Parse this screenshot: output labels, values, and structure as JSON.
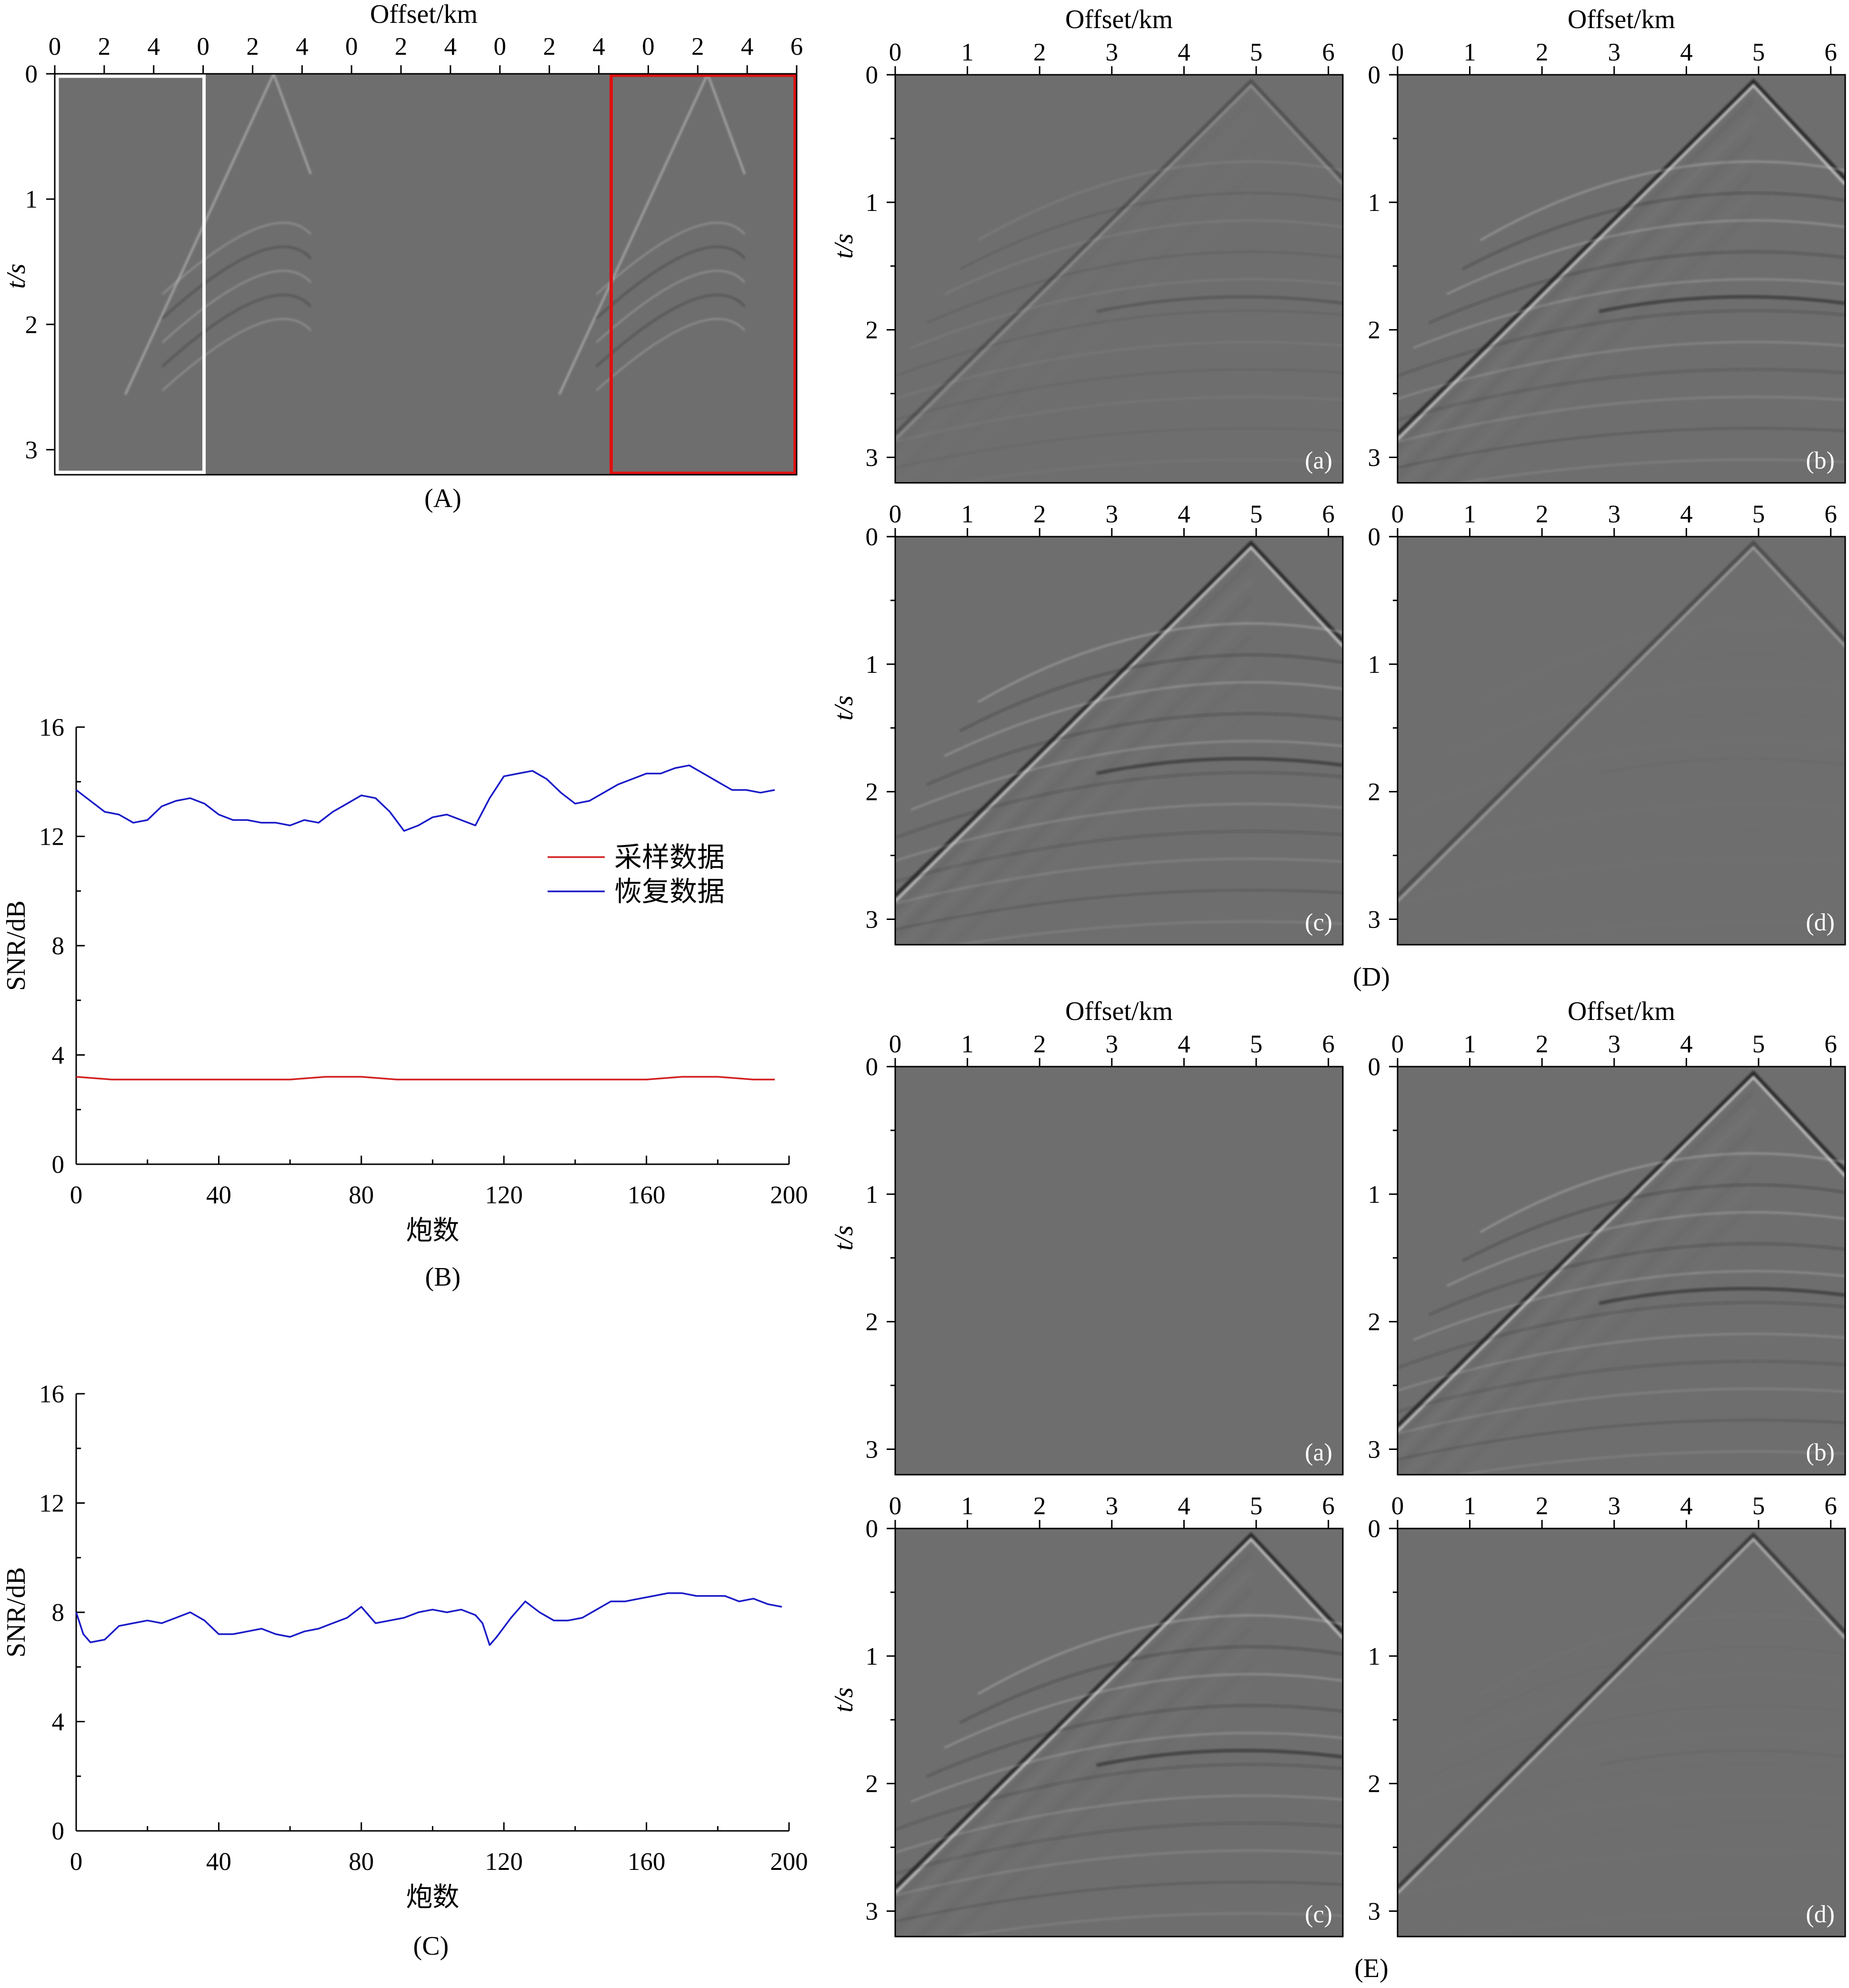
{
  "colors": {
    "seismic_background": "#6e6e6e",
    "sampled_line": "#d21f1f",
    "recovered_line": "#1a1ac8",
    "highlight_white": "#ffffff",
    "highlight_red": "#e01010"
  },
  "captions": {
    "A": "(A)",
    "B": "(B)",
    "C": "(C)",
    "D": "(D)",
    "E": "(E)"
  },
  "axes": {
    "offset_title": "Offset/km",
    "time_title": "t/s",
    "snr_title": "SNR/dB",
    "shot_title": "炮数"
  },
  "legend": {
    "sampled": "采样数据",
    "recovered": "恢复数据"
  },
  "corner_labels": [
    "(a)",
    "(b)",
    "(c)",
    "(d)"
  ],
  "chart_data": [
    {
      "id": "A",
      "type": "heatmap",
      "description_visible": "concatenated shot gathers",
      "x_tick_labels": [
        "0",
        "2",
        "4",
        "0",
        "2",
        "4",
        "0",
        "2",
        "4",
        "0",
        "2",
        "4",
        "0",
        "2",
        "4",
        "6"
      ],
      "y_ticks": [
        0,
        1,
        2,
        3
      ],
      "xlabel": "Offset/km",
      "ylabel": "t/s",
      "ylim": [
        0,
        3.2
      ]
    },
    {
      "id": "B",
      "type": "line",
      "xlabel": "炮数",
      "ylabel": "SNR/dB",
      "xlim": [
        0,
        200
      ],
      "ylim": [
        0,
        16
      ],
      "x_ticks": [
        0,
        40,
        80,
        120,
        160,
        200
      ],
      "y_ticks": [
        0,
        4,
        8,
        12,
        16
      ],
      "legend": "center-right",
      "series": [
        {
          "name": "采样数据",
          "color": "#d21f1f",
          "x": [
            0,
            10,
            20,
            30,
            40,
            50,
            60,
            70,
            80,
            90,
            100,
            110,
            120,
            130,
            140,
            150,
            160,
            170,
            180,
            190,
            196
          ],
          "values": [
            3.2,
            3.1,
            3.1,
            3.1,
            3.1,
            3.1,
            3.1,
            3.2,
            3.2,
            3.1,
            3.1,
            3.1,
            3.1,
            3.1,
            3.1,
            3.1,
            3.1,
            3.2,
            3.2,
            3.1,
            3.1
          ]
        },
        {
          "name": "恢复数据",
          "color": "#1a1ac8",
          "x": [
            0,
            4,
            8,
            12,
            16,
            20,
            24,
            28,
            32,
            36,
            40,
            44,
            48,
            52,
            56,
            60,
            64,
            68,
            72,
            76,
            80,
            84,
            88,
            92,
            96,
            100,
            104,
            108,
            112,
            116,
            120,
            124,
            128,
            132,
            136,
            140,
            144,
            148,
            152,
            156,
            160,
            164,
            168,
            172,
            176,
            180,
            184,
            188,
            192,
            196
          ],
          "values": [
            13.7,
            13.3,
            12.9,
            12.8,
            12.5,
            12.6,
            13.1,
            13.3,
            13.4,
            13.2,
            12.8,
            12.6,
            12.6,
            12.5,
            12.5,
            12.4,
            12.6,
            12.5,
            12.9,
            13.2,
            13.5,
            13.4,
            12.9,
            12.2,
            12.4,
            12.7,
            12.8,
            12.6,
            12.4,
            13.4,
            14.2,
            14.3,
            14.4,
            14.1,
            13.6,
            13.2,
            13.3,
            13.6,
            13.9,
            14.1,
            14.3,
            14.3,
            14.5,
            14.6,
            14.3,
            14.0,
            13.7,
            13.7,
            13.6,
            13.7
          ]
        }
      ]
    },
    {
      "id": "C",
      "type": "line",
      "xlabel": "炮数",
      "ylabel": "SNR/dB",
      "xlim": [
        0,
        200
      ],
      "ylim": [
        0,
        16
      ],
      "x_ticks": [
        0,
        40,
        80,
        120,
        160,
        200
      ],
      "y_ticks": [
        0,
        4,
        8,
        12,
        16
      ],
      "series": [
        {
          "color": "#1a1ac8",
          "x": [
            0,
            2,
            4,
            8,
            12,
            16,
            20,
            24,
            28,
            32,
            36,
            40,
            44,
            48,
            52,
            56,
            60,
            64,
            68,
            72,
            76,
            80,
            84,
            88,
            92,
            96,
            100,
            104,
            108,
            112,
            114,
            116,
            118,
            122,
            126,
            130,
            134,
            138,
            142,
            146,
            150,
            154,
            158,
            162,
            166,
            170,
            174,
            178,
            182,
            186,
            190,
            194,
            198
          ],
          "values": [
            8.0,
            7.2,
            6.9,
            7.0,
            7.5,
            7.6,
            7.7,
            7.6,
            7.8,
            8.0,
            7.7,
            7.2,
            7.2,
            7.3,
            7.4,
            7.2,
            7.1,
            7.3,
            7.4,
            7.6,
            7.8,
            8.2,
            7.6,
            7.7,
            7.8,
            8.0,
            8.1,
            8.0,
            8.1,
            7.9,
            7.6,
            6.8,
            7.1,
            7.8,
            8.4,
            8.0,
            7.7,
            7.7,
            7.8,
            8.1,
            8.4,
            8.4,
            8.5,
            8.6,
            8.7,
            8.7,
            8.6,
            8.6,
            8.6,
            8.4,
            8.5,
            8.3,
            8.2
          ]
        }
      ]
    },
    {
      "id": "D",
      "type": "heatmap",
      "subpanels": [
        "(a)",
        "(b)",
        "(c)",
        "(d)"
      ],
      "x_ticks": [
        0,
        1,
        2,
        3,
        4,
        5,
        6
      ],
      "y_ticks": [
        0,
        1,
        2,
        3
      ],
      "xlabel": "Offset/km",
      "ylabel": "t/s",
      "xlim": [
        0,
        6.2
      ],
      "ylim": [
        0,
        3.2
      ]
    },
    {
      "id": "E",
      "type": "heatmap",
      "subpanels": [
        "(a)",
        "(b)",
        "(c)",
        "(d)"
      ],
      "x_ticks": [
        0,
        1,
        2,
        3,
        4,
        5,
        6
      ],
      "y_ticks": [
        0,
        1,
        2,
        3
      ],
      "xlabel": "Offset/km",
      "ylabel": "t/s",
      "xlim": [
        0,
        6.2
      ],
      "ylim": [
        0,
        3.2
      ]
    }
  ]
}
